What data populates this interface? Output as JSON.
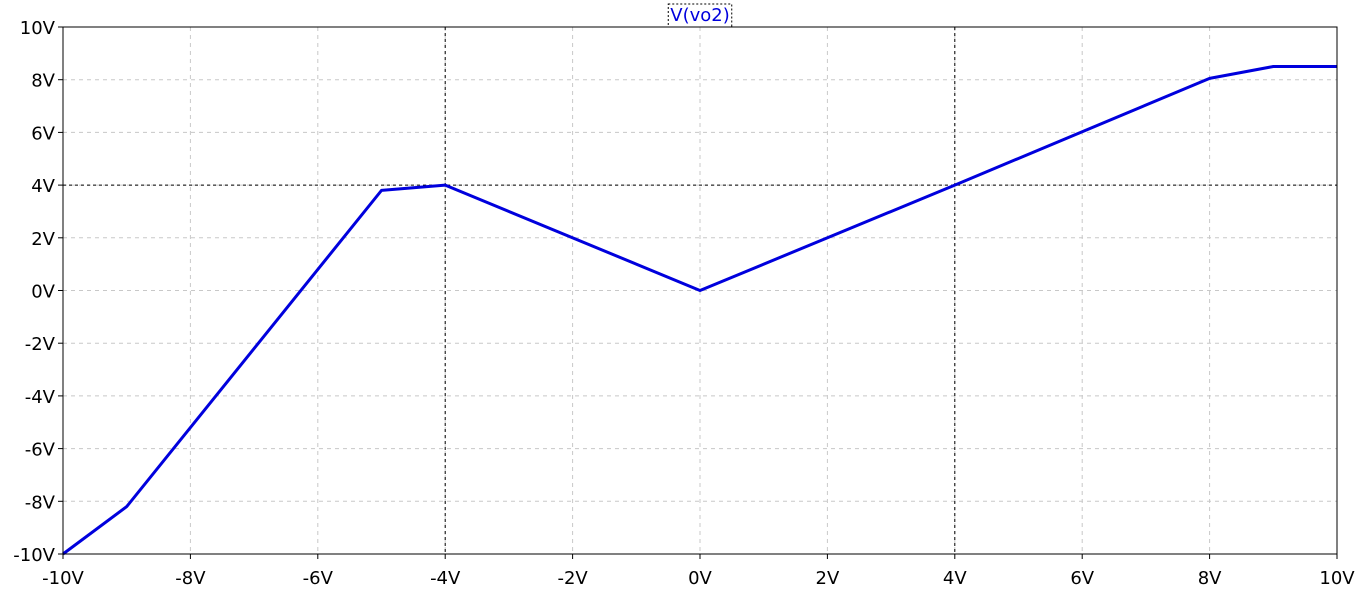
{
  "chart_data": {
    "type": "line",
    "x_ticks": [
      "-10V",
      "-8V",
      "-6V",
      "-4V",
      "-2V",
      "0V",
      "2V",
      "4V",
      "6V",
      "8V",
      "10V"
    ],
    "y_ticks": [
      "10V",
      "8V",
      "6V",
      "4V",
      "2V",
      "0V",
      "-2V",
      "-4V",
      "-6V",
      "-8V",
      "-10V"
    ],
    "xlim": [
      -10,
      10
    ],
    "ylim": [
      -10,
      10
    ],
    "grid": true,
    "cursor_lines": {
      "x": [
        -4,
        4
      ],
      "y": [
        4
      ]
    },
    "series": [
      {
        "name": "V(vo2)",
        "color": "#0000dd",
        "x": [
          -10,
          -9,
          -5,
          -4,
          0,
          4,
          8,
          9,
          10
        ],
        "y": [
          -10,
          -8.2,
          3.8,
          4.0,
          0,
          4.0,
          8.05,
          8.5,
          8.5
        ]
      }
    ]
  }
}
